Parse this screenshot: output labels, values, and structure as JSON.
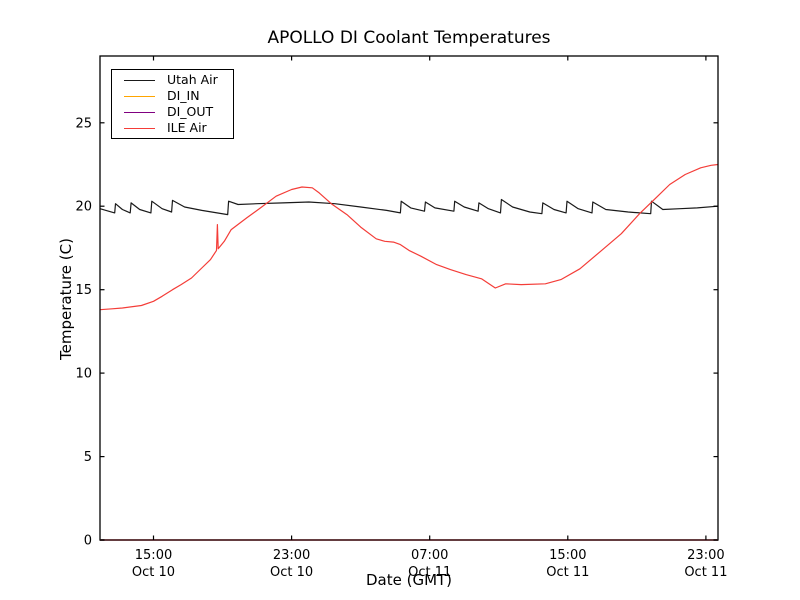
{
  "figure": {
    "title": "APOLLO DI Coolant Temperatures",
    "xlabel": "Date (GMT)",
    "ylabel": "Temperature (C)"
  },
  "chart_data": {
    "type": "line",
    "title": "APOLLO DI Coolant Temperatures",
    "xlabel": "Date (GMT)",
    "ylabel": "Temperature (C)",
    "x_unit_note": "x values are hours since Oct 10 00:00 GMT",
    "xlim": [
      11.9,
      47.7
    ],
    "ylim": [
      0,
      29
    ],
    "grid": false,
    "legend_position": "upper left",
    "yticks": [
      0,
      5,
      10,
      15,
      20,
      25
    ],
    "xticks": [
      {
        "t": 15,
        "time": "15:00",
        "date": "Oct 10"
      },
      {
        "t": 23,
        "time": "23:00",
        "date": "Oct 10"
      },
      {
        "t": 31,
        "time": "07:00",
        "date": "Oct 11"
      },
      {
        "t": 39,
        "time": "15:00",
        "date": "Oct 11"
      },
      {
        "t": 47,
        "time": "23:00",
        "date": "Oct 11"
      }
    ],
    "series": [
      {
        "name": "Utah Air",
        "color": "#1a1a1a",
        "points": [
          [
            11.9,
            19.85
          ],
          [
            12.4,
            19.7
          ],
          [
            12.75,
            19.6
          ],
          [
            12.8,
            20.15
          ],
          [
            13.2,
            19.8
          ],
          [
            13.65,
            19.6
          ],
          [
            13.7,
            20.2
          ],
          [
            14.2,
            19.8
          ],
          [
            14.85,
            19.6
          ],
          [
            14.9,
            20.3
          ],
          [
            15.5,
            19.85
          ],
          [
            16.05,
            19.65
          ],
          [
            16.1,
            20.35
          ],
          [
            16.8,
            19.95
          ],
          [
            17.8,
            19.75
          ],
          [
            19.3,
            19.5
          ],
          [
            19.35,
            20.3
          ],
          [
            19.9,
            20.1
          ],
          [
            21.0,
            20.15
          ],
          [
            22.5,
            20.2
          ],
          [
            24.0,
            20.25
          ],
          [
            25.5,
            20.15
          ],
          [
            27.0,
            19.95
          ],
          [
            28.5,
            19.75
          ],
          [
            29.3,
            19.6
          ],
          [
            29.35,
            20.3
          ],
          [
            29.9,
            19.9
          ],
          [
            30.7,
            19.7
          ],
          [
            30.75,
            20.25
          ],
          [
            31.3,
            19.9
          ],
          [
            32.4,
            19.7
          ],
          [
            32.45,
            20.3
          ],
          [
            33.0,
            19.95
          ],
          [
            33.8,
            19.7
          ],
          [
            33.85,
            20.2
          ],
          [
            34.4,
            19.85
          ],
          [
            35.1,
            19.6
          ],
          [
            35.15,
            20.4
          ],
          [
            35.8,
            19.95
          ],
          [
            36.8,
            19.65
          ],
          [
            37.5,
            19.55
          ],
          [
            37.55,
            20.2
          ],
          [
            38.2,
            19.8
          ],
          [
            38.9,
            19.6
          ],
          [
            38.95,
            20.3
          ],
          [
            39.6,
            19.85
          ],
          [
            40.4,
            19.6
          ],
          [
            40.45,
            20.25
          ],
          [
            41.2,
            19.8
          ],
          [
            42.5,
            19.65
          ],
          [
            43.8,
            19.55
          ],
          [
            43.85,
            20.3
          ],
          [
            44.5,
            19.8
          ],
          [
            45.5,
            19.85
          ],
          [
            46.5,
            19.9
          ],
          [
            47.7,
            20.0
          ]
        ]
      },
      {
        "name": "DI_IN",
        "color": "#ffa500",
        "points": [
          [
            11.9,
            0
          ],
          [
            47.7,
            0
          ]
        ]
      },
      {
        "name": "DI_OUT",
        "color": "#800080",
        "points": [
          [
            11.9,
            0
          ],
          [
            47.7,
            0
          ]
        ]
      },
      {
        "name": "ILE Air",
        "color": "#f43d38",
        "points": [
          [
            11.9,
            13.8
          ],
          [
            12.6,
            13.85
          ],
          [
            13.2,
            13.9
          ],
          [
            14.3,
            14.05
          ],
          [
            15.0,
            14.3
          ],
          [
            15.5,
            14.6
          ],
          [
            16.1,
            15.0
          ],
          [
            16.6,
            15.3
          ],
          [
            17.2,
            15.7
          ],
          [
            17.8,
            16.3
          ],
          [
            18.3,
            16.8
          ],
          [
            18.65,
            17.35
          ],
          [
            18.7,
            18.9
          ],
          [
            18.75,
            17.45
          ],
          [
            19.1,
            17.9
          ],
          [
            19.5,
            18.6
          ],
          [
            20.4,
            19.3
          ],
          [
            21.2,
            19.9
          ],
          [
            22.1,
            20.6
          ],
          [
            23.0,
            21.0
          ],
          [
            23.6,
            21.15
          ],
          [
            24.2,
            21.1
          ],
          [
            24.6,
            20.8
          ],
          [
            25.3,
            20.15
          ],
          [
            26.2,
            19.5
          ],
          [
            27.0,
            18.75
          ],
          [
            27.9,
            18.05
          ],
          [
            28.4,
            17.9
          ],
          [
            28.9,
            17.85
          ],
          [
            29.3,
            17.7
          ],
          [
            29.8,
            17.35
          ],
          [
            30.5,
            17.0
          ],
          [
            31.4,
            16.5
          ],
          [
            32.2,
            16.2
          ],
          [
            33.1,
            15.9
          ],
          [
            34.0,
            15.65
          ],
          [
            34.8,
            15.1
          ],
          [
            35.4,
            15.35
          ],
          [
            36.3,
            15.3
          ],
          [
            37.7,
            15.35
          ],
          [
            38.6,
            15.6
          ],
          [
            39.7,
            16.25
          ],
          [
            40.9,
            17.3
          ],
          [
            42.1,
            18.35
          ],
          [
            43.2,
            19.6
          ],
          [
            44.1,
            20.5
          ],
          [
            44.9,
            21.3
          ],
          [
            45.8,
            21.9
          ],
          [
            46.7,
            22.3
          ],
          [
            47.3,
            22.45
          ],
          [
            47.7,
            22.5
          ]
        ]
      }
    ]
  }
}
